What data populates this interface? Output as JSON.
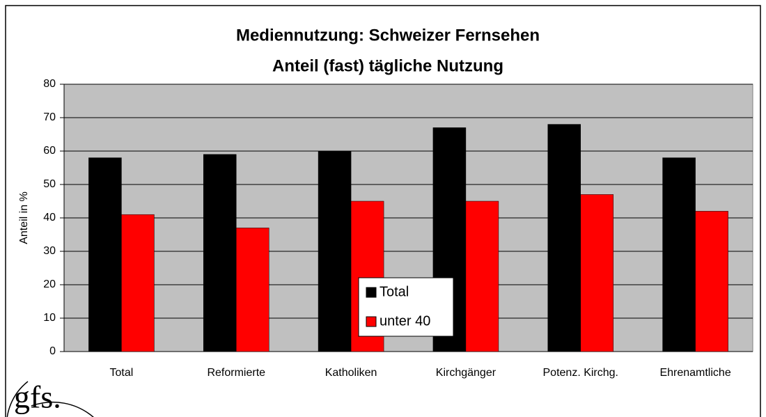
{
  "logo": "gfs.",
  "chart_data": {
    "type": "bar",
    "title": [
      "Mediennutzung: Schweizer Fernsehen",
      "Anteil (fast) tägliche Nutzung"
    ],
    "y_label": "Anteil in %",
    "categories": [
      "Total",
      "Reformierte",
      "Katholiken",
      "Kirchgänger",
      "Potenz. Kirchg.",
      "Ehrenamtliche"
    ],
    "series": [
      {
        "name": "Total",
        "color": "#000000",
        "values": [
          58,
          59,
          60,
          67,
          68,
          58
        ]
      },
      {
        "name": "unter 40",
        "color": "#ff0000",
        "values": [
          41,
          37,
          45,
          45,
          47,
          42
        ]
      }
    ],
    "ylim": [
      0,
      80
    ],
    "yticks": [
      0,
      10,
      20,
      30,
      40,
      50,
      60,
      70,
      80
    ],
    "grid": true,
    "plot_background": "#c0c0c0",
    "legend": "center"
  }
}
